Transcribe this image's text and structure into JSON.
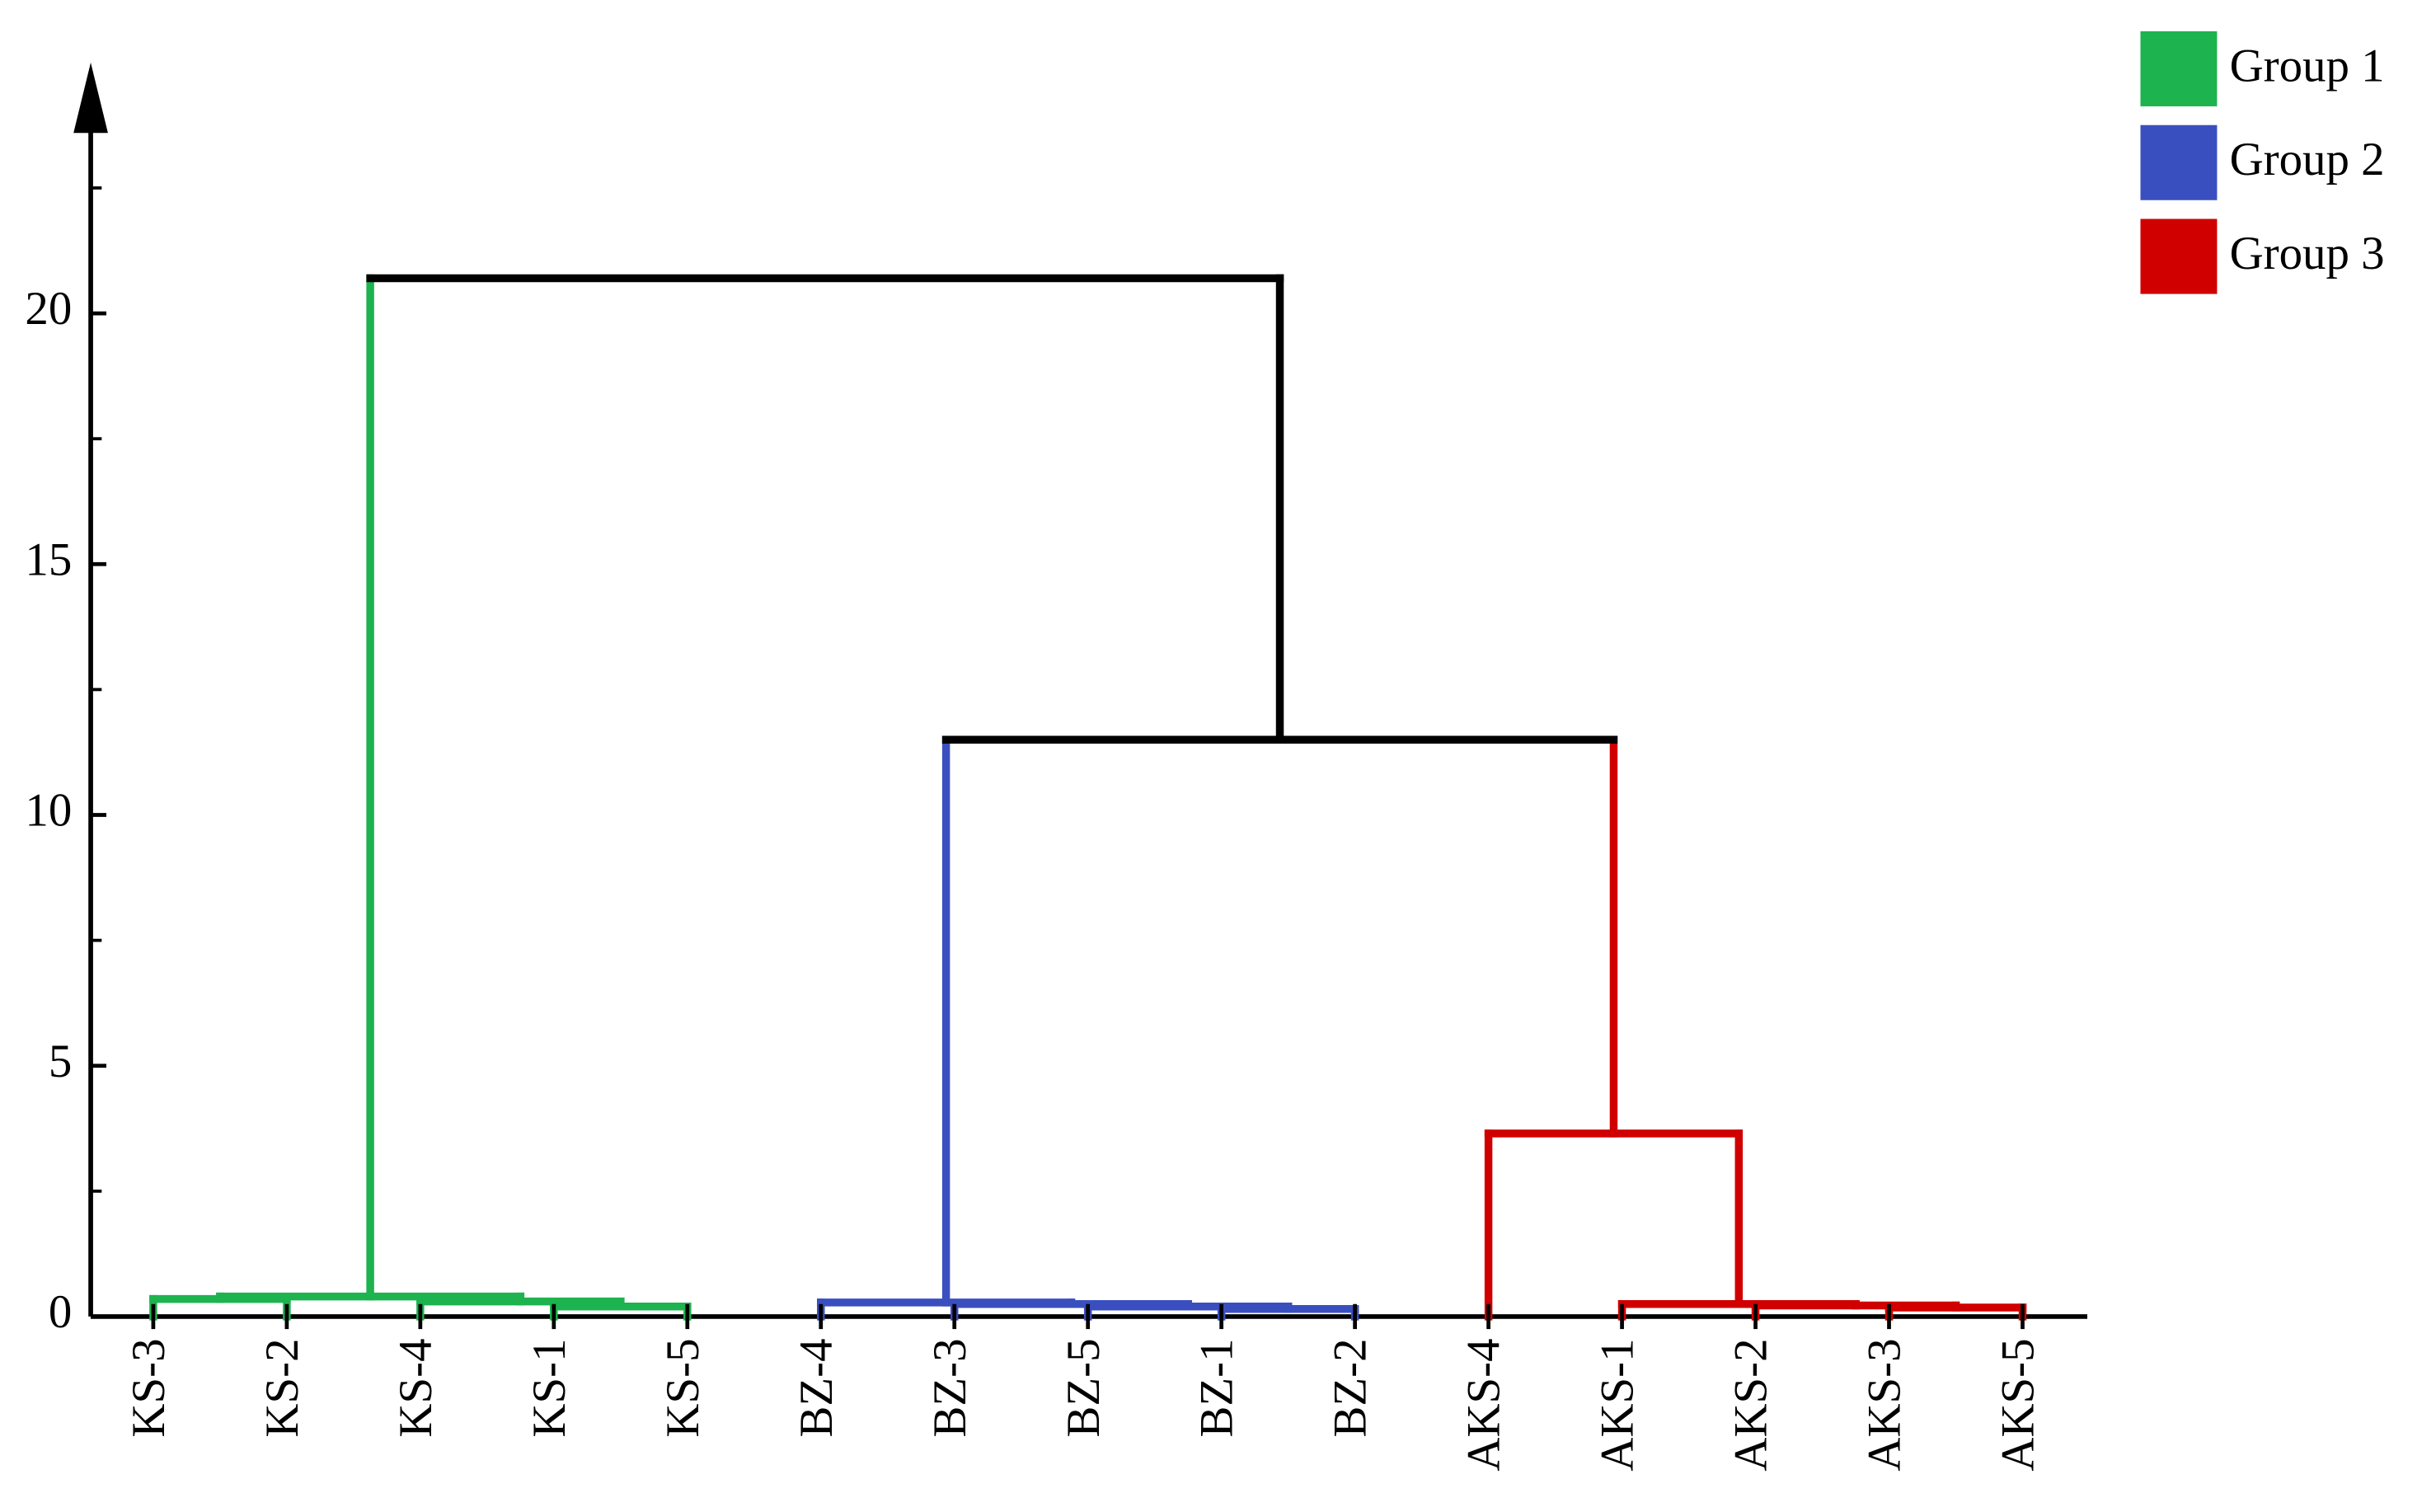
{
  "chart_data": {
    "type": "dendrogram",
    "categories": [
      "KS-3",
      "KS-2",
      "KS-4",
      "KS-1",
      "KS-5",
      "BZ-4",
      "BZ-3",
      "BZ-5",
      "BZ-1",
      "BZ-2",
      "AKS-4",
      "AKS-1",
      "AKS-2",
      "AKS-3",
      "AKS-5"
    ],
    "merges": [
      {
        "children": [
          3,
          4
        ],
        "height": 0.2,
        "color": "#1db34f"
      },
      {
        "children": [
          2,
          15
        ],
        "height": 0.3,
        "color": "#1db34f"
      },
      {
        "children": [
          0,
          1
        ],
        "height": 0.35,
        "color": "#1db34f"
      },
      {
        "children": [
          17,
          16
        ],
        "height": 0.4,
        "color": "#1db34f"
      },
      {
        "children": [
          8,
          9
        ],
        "height": 0.15,
        "color": "#3a4fbf"
      },
      {
        "children": [
          7,
          19
        ],
        "height": 0.2,
        "color": "#3a4fbf"
      },
      {
        "children": [
          6,
          20
        ],
        "height": 0.25,
        "color": "#3a4fbf"
      },
      {
        "children": [
          5,
          21
        ],
        "height": 0.28,
        "color": "#3a4fbf"
      },
      {
        "children": [
          13,
          14
        ],
        "height": 0.18,
        "color": "#d00000"
      },
      {
        "children": [
          12,
          23
        ],
        "height": 0.22,
        "color": "#d00000"
      },
      {
        "children": [
          11,
          24
        ],
        "height": 0.25,
        "color": "#d00000"
      },
      {
        "children": [
          10,
          25
        ],
        "height": 3.65,
        "color": "#d00000"
      },
      {
        "children": [
          22,
          26
        ],
        "height": 11.5,
        "color": "#000000"
      },
      {
        "children": [
          18,
          27
        ],
        "height": 20.7,
        "color": "#000000"
      }
    ],
    "legend": [
      {
        "name": "Group 1",
        "color": "#1db34f"
      },
      {
        "name": "Group 2",
        "color": "#3a4fbf"
      },
      {
        "name": "Group 3",
        "color": "#d00000"
      }
    ],
    "ylim": [
      0,
      25
    ],
    "yticks": [
      0,
      5,
      10,
      15,
      20
    ],
    "yminor_ticks": [
      2.5,
      7.5,
      12.5,
      17.5,
      22.5
    ]
  }
}
